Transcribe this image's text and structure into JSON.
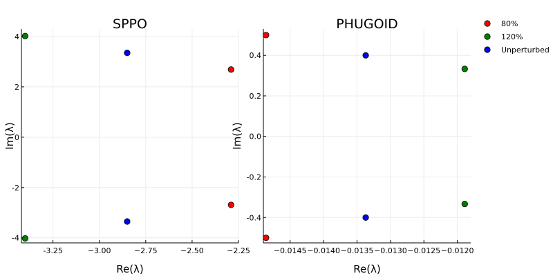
{
  "chart_data": [
    {
      "type": "scatter",
      "title": "SPPO",
      "xlabel": "Re(λ)",
      "ylabel": "Im(λ)",
      "xlim": [
        -3.42,
        -2.25
      ],
      "ylim": [
        -4.2,
        4.3
      ],
      "xticks": [
        -3.25,
        -3.0,
        -2.75,
        -2.5,
        -2.25
      ],
      "xtick_labels": [
        "-3.25",
        "−3.00",
        "−2.75",
        "−2.50",
        "−2.25"
      ],
      "yticks": [
        4,
        2,
        0,
        -2,
        -4
      ],
      "ytick_labels": [
        "4",
        "2",
        "0",
        "-2",
        "-4"
      ],
      "grid": true,
      "series": [
        {
          "name": "80%",
          "color": "#ff0000",
          "x": [
            -2.29,
            -2.29
          ],
          "y": [
            2.69,
            -2.69
          ]
        },
        {
          "name": "120%",
          "color": "#008000",
          "x": [
            -3.4,
            -3.4
          ],
          "y": [
            4.02,
            -4.02
          ]
        },
        {
          "name": "Unperturbed",
          "color": "#0000ff",
          "x": [
            -2.85,
            -2.85
          ],
          "y": [
            3.35,
            -3.35
          ]
        }
      ]
    },
    {
      "type": "scatter",
      "title": "PHUGOID",
      "xlabel": "Re(λ)",
      "ylabel": "Im(λ)",
      "xlim": [
        -0.0149,
        -0.0118
      ],
      "ylim": [
        -0.525,
        0.53
      ],
      "xticks": [
        -0.0145,
        -0.014,
        -0.0135,
        -0.013,
        -0.0125,
        -0.012
      ],
      "xtick_labels": [
        "−0.0145",
        "−0.0140",
        "−0.0135",
        "−0.0130",
        "−0.0125",
        "−0.0120"
      ],
      "yticks": [
        0.4,
        0.2,
        0.0,
        -0.2,
        -0.4
      ],
      "ytick_labels": [
        "0.4",
        "0.2",
        "0.0",
        "-0.2",
        "-0.4"
      ],
      "grid": true,
      "series": [
        {
          "name": "80%",
          "color": "#ff0000",
          "x": [
            -0.01486,
            -0.01486
          ],
          "y": [
            0.5,
            -0.5
          ]
        },
        {
          "name": "120%",
          "color": "#008000",
          "x": [
            -0.01189,
            -0.01189
          ],
          "y": [
            0.333,
            -0.333
          ]
        },
        {
          "name": "Unperturbed",
          "color": "#0000ff",
          "x": [
            -0.01337,
            -0.01337
          ],
          "y": [
            0.4,
            -0.4
          ]
        }
      ]
    }
  ],
  "legend": {
    "placement": "top-right",
    "entries": [
      {
        "label": "80%",
        "color": "#ff0000"
      },
      {
        "label": "120%",
        "color": "#008000"
      },
      {
        "label": "Unperturbed",
        "color": "#0000ff"
      }
    ]
  }
}
